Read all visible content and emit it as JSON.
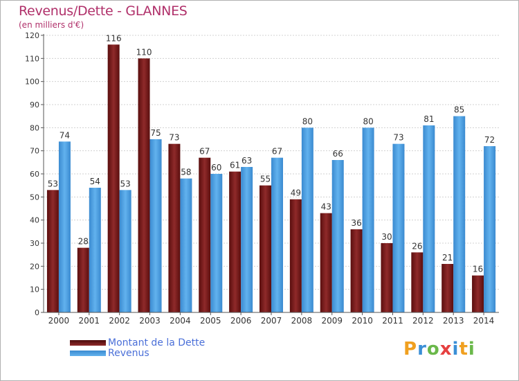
{
  "header": {
    "title": "Revenus/Dette - GLANNES",
    "subtitle": "(en milliers d'€)"
  },
  "brand": {
    "letters": [
      "P",
      "r",
      "o",
      "x",
      "i",
      "t",
      "i"
    ],
    "colors": [
      "#f0a020",
      "#3b8fd6",
      "#6ab84a",
      "#e64040",
      "#3b8fd6",
      "#f0a020",
      "#6ab84a"
    ]
  },
  "colors": {
    "debt": "#7a1a1a",
    "revenue": "#4a9fe0",
    "grid": "#d0d0d0",
    "axis": "#555555",
    "label": "#333333"
  },
  "chart_data": {
    "type": "bar",
    "title": "Revenus/Dette - GLANNES",
    "subtitle": "(en milliers d'€)",
    "categories": [
      "2000",
      "2001",
      "2002",
      "2003",
      "2004",
      "2005",
      "2006",
      "2007",
      "2008",
      "2009",
      "2010",
      "2011",
      "2012",
      "2013",
      "2014"
    ],
    "series": [
      {
        "name": "Montant de la Dette",
        "values": [
          53,
          28,
          116,
          110,
          73,
          67,
          61,
          55,
          49,
          43,
          36,
          30,
          26,
          21,
          16
        ]
      },
      {
        "name": "Revenus",
        "values": [
          74,
          54,
          53,
          75,
          58,
          60,
          63,
          67,
          80,
          66,
          80,
          73,
          81,
          85,
          72
        ]
      }
    ],
    "ylim": [
      0,
      120
    ],
    "yticks": [
      0,
      10,
      20,
      30,
      40,
      50,
      60,
      70,
      80,
      90,
      100,
      110,
      120
    ],
    "grid": true,
    "legend": "bottom-left"
  }
}
